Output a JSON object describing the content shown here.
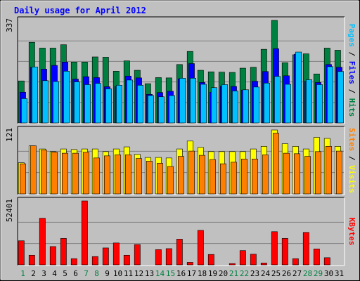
{
  "chart_data": {
    "type": "bar",
    "title": "Daily usage for April 2012",
    "categories": [
      "1",
      "2",
      "3",
      "4",
      "5",
      "6",
      "7",
      "8",
      "9",
      "10",
      "11",
      "12",
      "13",
      "14",
      "15",
      "16",
      "17",
      "18",
      "19",
      "20",
      "21",
      "22",
      "23",
      "24",
      "25",
      "26",
      "27",
      "28",
      "29",
      "30",
      "31"
    ],
    "weekend_days": [
      "1",
      "7",
      "8",
      "14",
      "15",
      "21",
      "22",
      "28",
      "29"
    ],
    "panels": [
      {
        "max_label": "337",
        "ymax": 337,
        "axis_label_parts": [
          "Pages",
          "Files",
          "Hits"
        ],
        "series": [
          {
            "name": "Hits",
            "color": "#008040",
            "values": [
              138,
              265,
              246,
              246,
              257,
              200,
              200,
              217,
              216,
              170,
              204,
              173,
              129,
              149,
              148,
              192,
              235,
              173,
              168,
              167,
              166,
              180,
              183,
              242,
              337,
              198,
              224,
              227,
              161,
              246,
              239
            ]
          },
          {
            "name": "Files",
            "color": "#0000ff",
            "values": [
              101,
              183,
              177,
              189,
              200,
              144,
              152,
              149,
              119,
              120,
              154,
              148,
              94,
              100,
              104,
              145,
              195,
              133,
              101,
              121,
              120,
              108,
              137,
              169,
              244,
              155,
              226,
              137,
              133,
              192,
              183
            ]
          },
          {
            "name": "Pages",
            "color": "#00c0ff",
            "values": [
              80,
              184,
              139,
              136,
              170,
              135,
              126,
              130,
              112,
              124,
              141,
              124,
              90,
              86,
              90,
              147,
              147,
              127,
              116,
              126,
              105,
              109,
              118,
              131,
              153,
              127,
              233,
              142,
              126,
              185,
              169
            ]
          }
        ]
      },
      {
        "max_label": "121",
        "ymax": 121,
        "axis_label_parts": [
          "Sites",
          "Visits"
        ],
        "series": [
          {
            "name": "Visits",
            "color": "#ffff00",
            "values": [
              59,
              91,
              85,
              80,
              85,
              84,
              85,
              85,
              80,
              85,
              89,
              75,
              69,
              69,
              68,
              85,
              100,
              88,
              80,
              80,
              80,
              80,
              85,
              90,
              121,
              95,
              90,
              85,
              107,
              105,
              90
            ]
          },
          {
            "name": "Sites",
            "color": "#ff8000",
            "values": [
              57,
              91,
              83,
              79,
              77,
              77,
              79,
              68,
              72,
              74,
              74,
              67,
              62,
              58,
              52,
              71,
              81,
              73,
              65,
              57,
              60,
              66,
              66,
              74,
              115,
              77,
              76,
              71,
              80,
              90,
              81
            ]
          }
        ]
      },
      {
        "max_label": "52401",
        "ymax": 52401,
        "axis_label_parts": [
          "KBytes"
        ],
        "series": [
          {
            "name": "KBytes",
            "color": "#ff0000",
            "values": [
              19725,
              7894,
              38212,
              14998,
              21658,
              5082,
              52401,
              6803,
              13861,
              17934,
              7895,
              16640,
              0,
              12485,
              13283,
              21070,
              2053,
              28262,
              8518,
              0,
              1055,
              11691,
              8713,
              1542,
              27183,
              21658,
              5092,
              26612,
              13047,
              5849,
              0
            ]
          }
        ]
      }
    ]
  }
}
